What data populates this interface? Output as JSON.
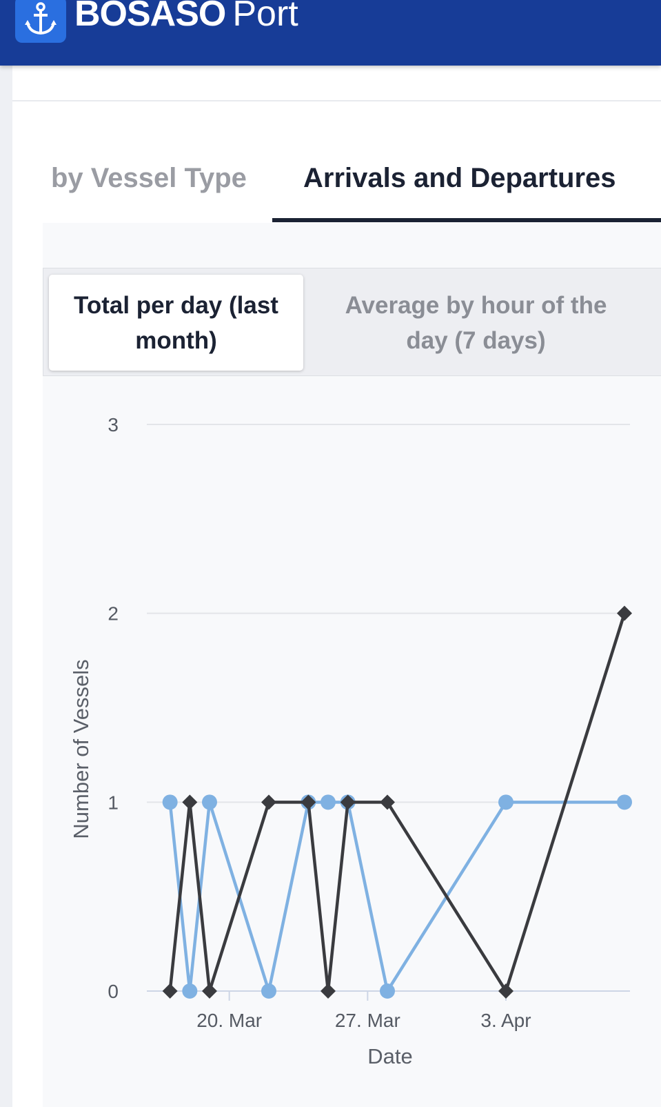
{
  "header": {
    "brand_bold": "BOSASO",
    "brand_light": "Port",
    "logo_icon": "anchor-icon"
  },
  "tabs": [
    {
      "label": "by Vessel Type",
      "active": false
    },
    {
      "label": "Arrivals and Departures",
      "active": true
    }
  ],
  "segmented": {
    "active_label": "Total per day (last month)",
    "inactive_label": "Average by hour of the day (7 days)"
  },
  "colors": {
    "header": "#173c97",
    "logo": "#2a6fe0",
    "series_light": "#7fb1e2",
    "series_dark": "#3a3b3f"
  },
  "chart_data": {
    "type": "line",
    "xlabel": "Date",
    "ylabel": "Number of Vessels",
    "y_ticks": [
      "0",
      "1",
      "2",
      "3"
    ],
    "ylim": [
      0,
      3
    ],
    "x_ticks": [
      "20. Mar",
      "27. Mar",
      "3. Apr"
    ],
    "x_tick_values": [
      "2025-03-20",
      "2025-03-27",
      "2025-04-03"
    ],
    "xlim": [
      "2025-03-16",
      "2025-04-09"
    ],
    "grid": "horizontal",
    "series": [
      {
        "color": "#7fb1e2",
        "marker": "circle",
        "points": [
          {
            "x": "2025-03-17",
            "y": 1
          },
          {
            "x": "2025-03-18",
            "y": 0
          },
          {
            "x": "2025-03-19",
            "y": 1
          },
          {
            "x": "2025-03-22",
            "y": 0
          },
          {
            "x": "2025-03-24",
            "y": 1
          },
          {
            "x": "2025-03-25",
            "y": 1
          },
          {
            "x": "2025-03-26",
            "y": 1
          },
          {
            "x": "2025-03-28",
            "y": 0
          },
          {
            "x": "2025-04-03",
            "y": 1
          },
          {
            "x": "2025-04-09",
            "y": 1
          }
        ]
      },
      {
        "color": "#3a3b3f",
        "marker": "diamond",
        "points": [
          {
            "x": "2025-03-17",
            "y": 0
          },
          {
            "x": "2025-03-18",
            "y": 1
          },
          {
            "x": "2025-03-19",
            "y": 0
          },
          {
            "x": "2025-03-22",
            "y": 1
          },
          {
            "x": "2025-03-24",
            "y": 1
          },
          {
            "x": "2025-03-25",
            "y": 0
          },
          {
            "x": "2025-03-26",
            "y": 1
          },
          {
            "x": "2025-03-28",
            "y": 1
          },
          {
            "x": "2025-04-03",
            "y": 0
          },
          {
            "x": "2025-04-09",
            "y": 2
          }
        ]
      }
    ]
  }
}
